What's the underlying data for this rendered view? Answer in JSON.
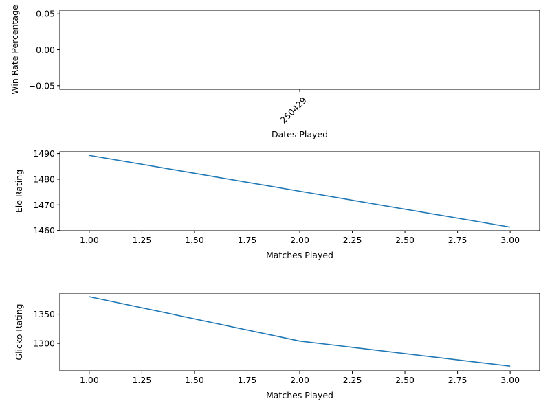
{
  "chart_data": [
    {
      "type": "line",
      "xlabel": "Dates Played",
      "ylabel": "Win Rate Percentage",
      "categories": [
        "250429"
      ],
      "x": [],
      "y": [],
      "ylim": [
        -0.055,
        0.055
      ],
      "yticks": [
        -0.05,
        0.0,
        0.05
      ],
      "ytick_labels": [
        "−0.05",
        "0.00",
        "0.05"
      ],
      "xtick_rotation_deg": -45,
      "grid": false,
      "color": "#1f77b4"
    },
    {
      "type": "line",
      "xlabel": "Matches Played",
      "ylabel": "Elo Rating",
      "x": [
        1.0,
        2.0,
        3.0
      ],
      "y": [
        1489.3,
        1475.3,
        1461.3
      ],
      "xlim": [
        0.86,
        3.14
      ],
      "ylim": [
        1459.9,
        1490.7
      ],
      "xticks": [
        1.0,
        1.25,
        1.5,
        1.75,
        2.0,
        2.25,
        2.5,
        2.75,
        3.0
      ],
      "xtick_labels": [
        "1.00",
        "1.25",
        "1.50",
        "1.75",
        "2.00",
        "2.25",
        "2.50",
        "2.75",
        "3.00"
      ],
      "yticks": [
        1460,
        1470,
        1480,
        1490
      ],
      "ytick_labels": [
        "1460",
        "1470",
        "1480",
        "1490"
      ],
      "grid": false,
      "color": "#1f77b4"
    },
    {
      "type": "line",
      "xlabel": "Matches Played",
      "ylabel": "Glicko Rating",
      "x": [
        1.0,
        2.0,
        3.0
      ],
      "y": [
        1380,
        1304,
        1261
      ],
      "xlim": [
        0.86,
        3.14
      ],
      "ylim": [
        1253,
        1386
      ],
      "xticks": [
        1.0,
        1.25,
        1.5,
        1.75,
        2.0,
        2.25,
        2.5,
        2.75,
        3.0
      ],
      "xtick_labels": [
        "1.00",
        "1.25",
        "1.50",
        "1.75",
        "2.00",
        "2.25",
        "2.50",
        "2.75",
        "3.00"
      ],
      "yticks": [
        1300,
        1350
      ],
      "ytick_labels": [
        "1300",
        "1350"
      ],
      "grid": false,
      "color": "#1f77b4"
    }
  ]
}
